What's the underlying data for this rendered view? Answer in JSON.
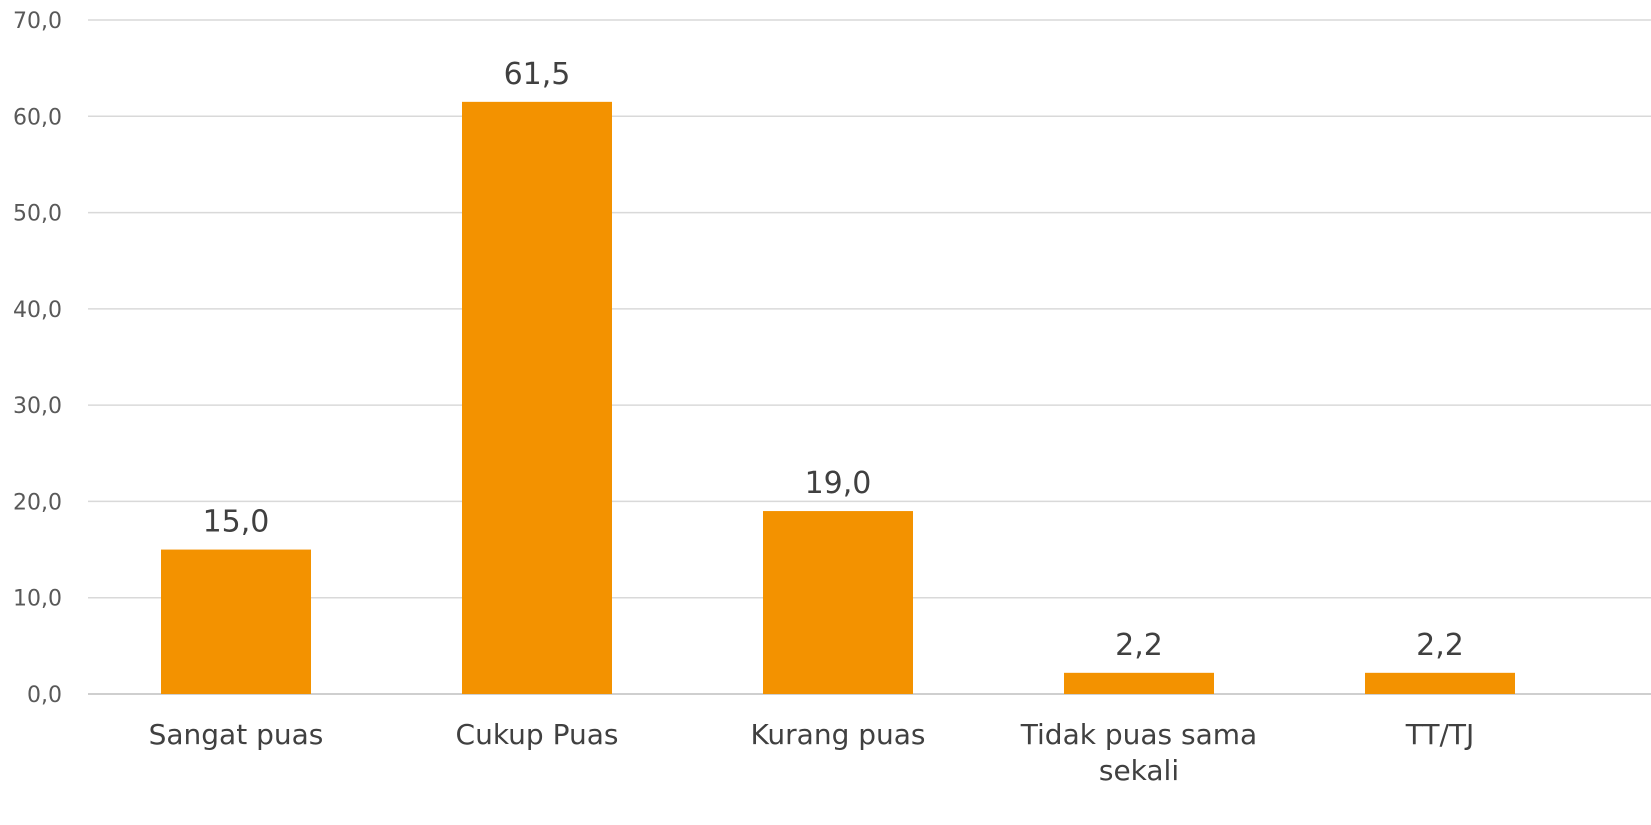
{
  "chart_data": {
    "type": "bar",
    "categories": [
      "Sangat puas",
      "Cukup Puas",
      "Kurang puas",
      "Tidak puas sama sekali",
      "TT/TJ"
    ],
    "category_label_lines": [
      [
        "Sangat puas"
      ],
      [
        "Cukup Puas"
      ],
      [
        "Kurang puas"
      ],
      [
        "Tidak puas sama",
        "sekali"
      ],
      [
        "TT/TJ"
      ]
    ],
    "values": [
      15.0,
      61.5,
      19.0,
      2.2,
      2.2
    ],
    "value_labels": [
      "15,0",
      "61,5",
      "19,0",
      "2,2",
      "2,2"
    ],
    "y_ticks": [
      0,
      10,
      20,
      30,
      40,
      50,
      60,
      70
    ],
    "y_tick_labels": [
      "0,0",
      "10,0",
      "20,0",
      "30,0",
      "40,0",
      "50,0",
      "60,0",
      "70,0"
    ],
    "ylim": [
      0,
      70
    ],
    "title": "",
    "xlabel": "",
    "ylabel": "",
    "grid": true,
    "legend": "none",
    "bar_color": "#F39200"
  }
}
